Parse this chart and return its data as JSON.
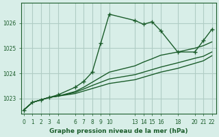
{
  "title": "Graphe pression niveau de la mer (hPa)",
  "background_color": "#d8eee8",
  "grid_color": "#b0ccc4",
  "line_color": "#1a5c2a",
  "ylim": [
    1022.4,
    1026.8
  ],
  "xlim": [
    -0.3,
    22.5
  ],
  "xticks": [
    0,
    1,
    2,
    3,
    4,
    6,
    7,
    8,
    9,
    10,
    13,
    14,
    15,
    16,
    18,
    20,
    21,
    22
  ],
  "yticks": [
    1023,
    1024,
    1025,
    1026
  ],
  "lines": [
    {
      "x": [
        0,
        1,
        2,
        3,
        4,
        6,
        7,
        8,
        9,
        10,
        13,
        14,
        15,
        16,
        18,
        20,
        21,
        22
      ],
      "y": [
        1022.55,
        1022.85,
        1022.95,
        1023.05,
        1023.1,
        1023.2,
        1023.3,
        1023.4,
        1023.5,
        1023.6,
        1023.75,
        1023.85,
        1023.95,
        1024.05,
        1024.2,
        1024.4,
        1024.5,
        1024.7
      ],
      "style": "-",
      "marker": null
    },
    {
      "x": [
        0,
        1,
        2,
        3,
        4,
        6,
        7,
        8,
        9,
        10,
        13,
        14,
        15,
        16,
        18,
        20,
        21,
        22
      ],
      "y": [
        1022.55,
        1022.85,
        1022.95,
        1023.05,
        1023.1,
        1023.25,
        1023.38,
        1023.52,
        1023.65,
        1023.78,
        1023.95,
        1024.05,
        1024.15,
        1024.25,
        1024.42,
        1024.6,
        1024.68,
        1024.85
      ],
      "style": "-",
      "marker": null
    },
    {
      "x": [
        0,
        1,
        2,
        3,
        4,
        6,
        7,
        8,
        9,
        10,
        13,
        14,
        15,
        16,
        18,
        20,
        21,
        22
      ],
      "y": [
        1022.55,
        1022.85,
        1022.95,
        1023.05,
        1023.1,
        1023.28,
        1023.45,
        1023.65,
        1023.85,
        1024.05,
        1024.3,
        1024.45,
        1024.58,
        1024.72,
        1024.85,
        1025.0,
        1025.1,
        1025.25
      ],
      "style": "-",
      "marker": null
    },
    {
      "x": [
        0,
        1,
        2,
        3,
        4,
        6,
        7,
        8,
        9,
        10,
        13,
        14,
        15,
        16,
        18,
        20,
        21,
        22
      ],
      "y": [
        1022.55,
        1022.85,
        1022.95,
        1023.05,
        1023.15,
        1023.45,
        1023.68,
        1024.05,
        1025.2,
        1026.35,
        1026.1,
        1025.95,
        1026.05,
        1025.7,
        1024.85,
        1024.85,
        1025.3,
        1025.75
      ],
      "style": "-",
      "marker": "+"
    }
  ]
}
